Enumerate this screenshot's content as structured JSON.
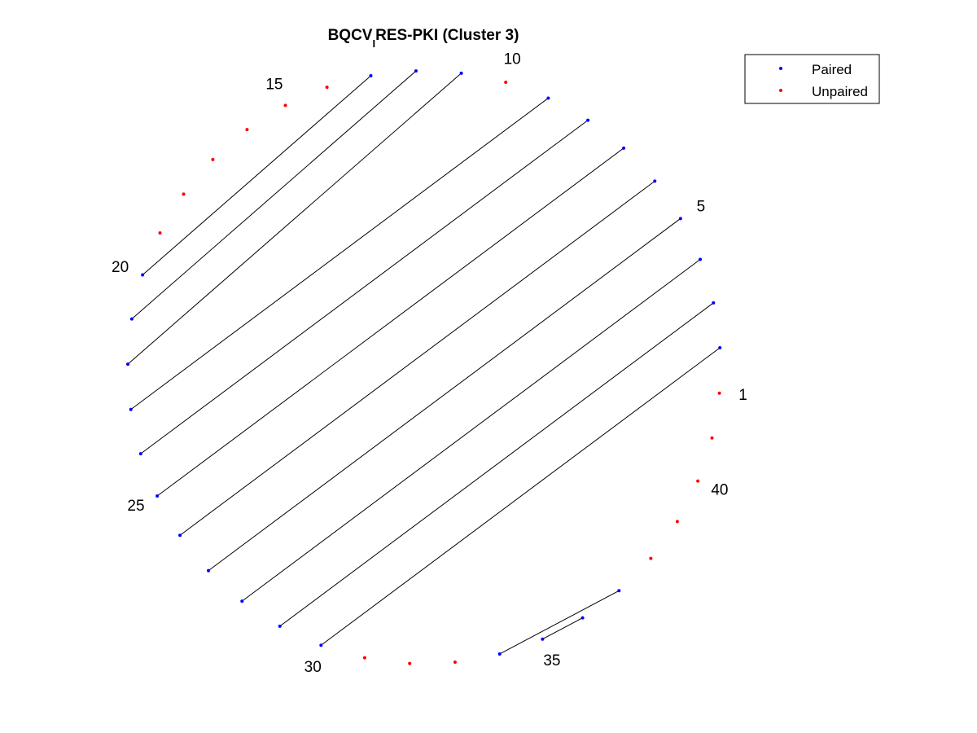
{
  "chart_data": {
    "type": "scatter",
    "title": "BQCV_IRES-PKI (Cluster 3)",
    "title_main": "BQCV",
    "title_subscript": "I",
    "title_rest": "RES-PKI (Cluster 3)",
    "layout": "circular",
    "n_nodes": 41,
    "start_angle_deg": -5,
    "direction": "counterclockwise",
    "node_labels": [
      "1",
      "5",
      "10",
      "15",
      "20",
      "25",
      "30",
      "35",
      "40"
    ],
    "labeled_nodes": [
      1,
      5,
      10,
      15,
      20,
      25,
      30,
      35,
      40
    ],
    "paired_nodes": [
      2,
      3,
      4,
      5,
      6,
      7,
      8,
      9,
      11,
      12,
      13,
      20,
      21,
      22,
      23,
      24,
      25,
      26,
      27,
      28,
      29,
      30,
      34,
      35,
      36,
      37
    ],
    "unpaired_nodes": [
      1,
      10,
      14,
      15,
      16,
      17,
      18,
      19,
      31,
      32,
      33,
      38,
      39,
      40,
      41
    ],
    "pairs": [
      [
        2,
        30
      ],
      [
        3,
        29
      ],
      [
        4,
        28
      ],
      [
        5,
        27
      ],
      [
        6,
        26
      ],
      [
        7,
        25
      ],
      [
        8,
        24
      ],
      [
        9,
        23
      ],
      [
        11,
        22
      ],
      [
        12,
        21
      ],
      [
        13,
        20
      ],
      [
        34,
        37
      ],
      [
        35,
        36
      ]
    ],
    "series": [
      {
        "name": "Paired",
        "color": "#0000ff"
      },
      {
        "name": "Unpaired",
        "color": "#ff0000"
      }
    ],
    "legend": {
      "position": "top-right",
      "entries": [
        "Paired",
        "Unpaired"
      ]
    },
    "line_color": "#000000",
    "grid": false,
    "axes_visible": false
  }
}
